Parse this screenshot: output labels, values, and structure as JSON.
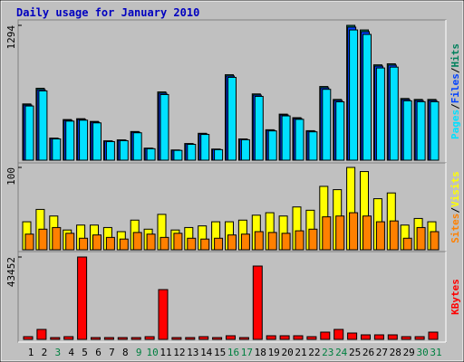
{
  "chart_data": {
    "type": "bar",
    "title": "Daily usage for January 2010",
    "categories": [
      "1",
      "2",
      "3",
      "4",
      "5",
      "6",
      "7",
      "8",
      "9",
      "10",
      "11",
      "12",
      "13",
      "14",
      "15",
      "16",
      "17",
      "18",
      "19",
      "20",
      "21",
      "22",
      "23",
      "24",
      "25",
      "26",
      "27",
      "28",
      "29",
      "30",
      "31"
    ],
    "weekend": [
      false,
      false,
      true,
      false,
      false,
      false,
      false,
      false,
      true,
      true,
      false,
      false,
      false,
      false,
      false,
      true,
      true,
      false,
      false,
      false,
      false,
      false,
      true,
      true,
      false,
      false,
      false,
      false,
      false,
      true,
      true
    ],
    "weekend_color": "#008040",
    "legend_separator": "/",
    "panels": [
      {
        "ylim": [
          0,
          1294
        ],
        "yticks": [
          1294
        ],
        "series": [
          {
            "name": "Hits",
            "color": "#00805c",
            "values": [
              540,
              690,
              212,
              390,
              398,
              372,
              186,
              195,
              275,
              116,
              655,
              98,
              160,
              258,
              107,
              820,
              204,
              636,
              292,
              442,
              408,
              283,
              707,
              583,
              1294,
              1250,
              915,
              925,
              592,
              583,
              583
            ]
          },
          {
            "name": "Files",
            "color": "#0040ff",
            "values": [
              530,
              677,
              208,
              382,
              391,
              365,
              182,
              191,
              269,
              113,
              643,
              96,
              156,
              252,
              104,
              808,
              200,
              625,
              287,
              434,
              400,
              278,
              695,
              573,
              1277,
              1233,
              903,
              912,
              582,
              573,
              573
            ]
          },
          {
            "name": "Pages",
            "color": "#00e0ff",
            "values": [
              520,
              665,
              204,
              375,
              384,
              358,
              178,
              187,
              263,
              110,
              630,
              94,
              152,
              247,
              101,
              795,
              196,
              612,
              281,
              425,
              392,
              272,
              680,
              560,
              1250,
              1207,
              885,
              893,
              570,
              561,
              561
            ]
          }
        ]
      },
      {
        "ylim": [
          0,
          100
        ],
        "yticks": [
          100
        ],
        "series": [
          {
            "name": "Visits",
            "color": "#ffff00",
            "values": [
              34,
              49,
              41,
              24,
              30,
              30,
              27,
              22,
              36,
              25,
              43,
              24,
              27,
              29,
              34,
              34,
              36,
              42,
              45,
              41,
              52,
              48,
              77,
              73,
              100,
              95,
              62,
              69,
              30,
              38,
              34
            ]
          },
          {
            "name": "Sites",
            "color": "#ff8000",
            "values": [
              19,
              25,
              27,
              20,
              14,
              18,
              15,
              13,
              21,
              19,
              15,
              20,
              14,
              13,
              14,
              18,
              19,
              22,
              21,
              20,
              23,
              25,
              40,
              41,
              45,
              41,
              34,
              35,
              14,
              27,
              22
            ]
          }
        ]
      },
      {
        "ylim": [
          0,
          43452
        ],
        "yticks": [
          43452
        ],
        "series": [
          {
            "name": "KBytes",
            "color": "#ff0000",
            "values": [
              1432,
              5252,
              955,
              1432,
              43452,
              955,
              955,
              955,
              955,
              1432,
              26262,
              955,
              955,
              1432,
              955,
              1910,
              955,
              38677,
              1910,
              1910,
              1910,
              1432,
              3820,
              5252,
              3342,
              2387,
              2387,
              2387,
              1432,
              1432,
              3820
            ]
          }
        ]
      }
    ]
  }
}
